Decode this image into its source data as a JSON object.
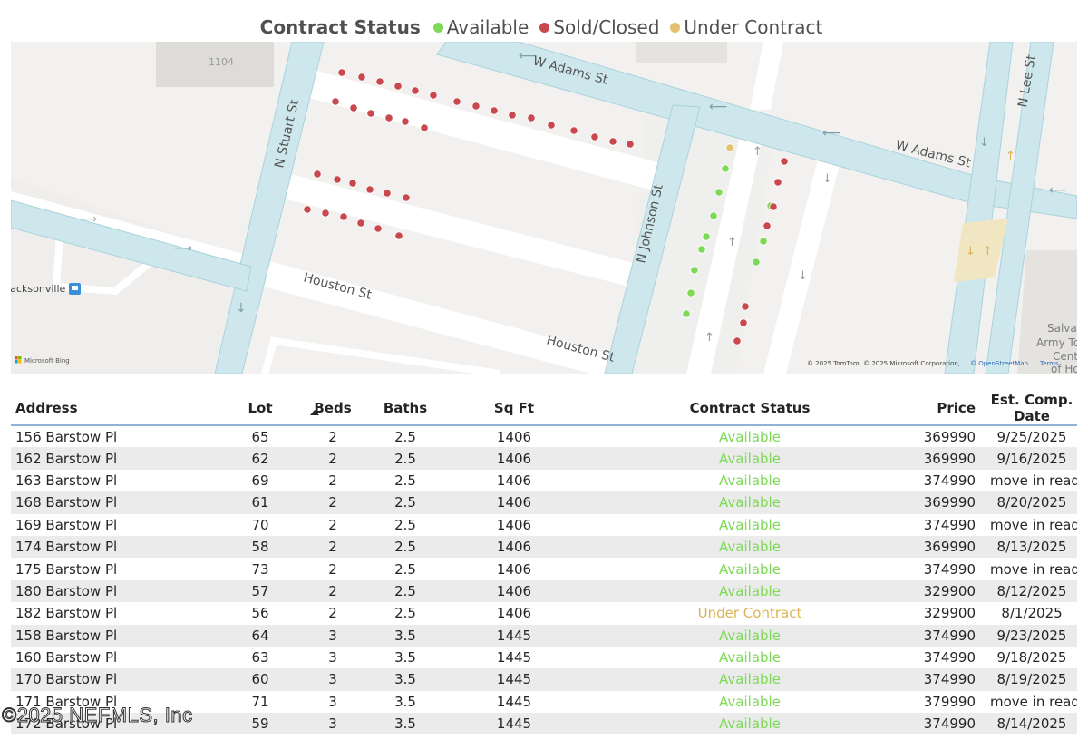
{
  "legend": {
    "title": "Contract Status",
    "items": [
      {
        "label": "Available",
        "color": "#7ed957"
      },
      {
        "label": "Sold/Closed",
        "color": "#c8484d"
      },
      {
        "label": "Under Contract",
        "color": "#e3c16f"
      }
    ]
  },
  "map": {
    "streets": {
      "w_adams_1": "W Adams St",
      "w_adams_2": "W Adams St",
      "n_stuart": "N Stuart St",
      "n_johnson": "N Johnson St",
      "houston_1": "Houston St",
      "houston_2": "Houston St",
      "n_lee": "N Lee St"
    },
    "labels": {
      "building": "1104",
      "place": "Jacksonville",
      "poi_line1": "Salvat",
      "poi_line2": "Army To",
      "poi_line3": "Cent",
      "poi_line4": "of Ho"
    },
    "logo": "Microsoft Bing",
    "attribution_prefix": "© 2025 TomTom, © 2025 Microsoft Corporation,",
    "attribution_link": "© OpenStreetMap",
    "terms_link": "Terms",
    "dot_status_colors": {
      "available": "#7ed957",
      "sold": "#c8484d",
      "under_contract": "#e3c16f"
    }
  },
  "table": {
    "columns": {
      "address": "Address",
      "lot": "Lot",
      "beds": "Beds",
      "baths": "Baths",
      "sqft": "Sq Ft",
      "status": "Contract Status",
      "price": "Price",
      "date": "Est. Comp. Date"
    },
    "sorted_column": "beds",
    "sort_direction": "ascending",
    "rows": [
      {
        "address": "156 Barstow Pl",
        "lot": "65",
        "beds": "2",
        "baths": "2.5",
        "sqft": "1406",
        "status": "Available",
        "price": "369990",
        "date": "9/25/2025"
      },
      {
        "address": "162 Barstow Pl",
        "lot": "62",
        "beds": "2",
        "baths": "2.5",
        "sqft": "1406",
        "status": "Available",
        "price": "369990",
        "date": "9/16/2025"
      },
      {
        "address": "163 Barstow Pl",
        "lot": "69",
        "beds": "2",
        "baths": "2.5",
        "sqft": "1406",
        "status": "Available",
        "price": "374990",
        "date": "move in ready"
      },
      {
        "address": "168 Barstow Pl",
        "lot": "61",
        "beds": "2",
        "baths": "2.5",
        "sqft": "1406",
        "status": "Available",
        "price": "369990",
        "date": "8/20/2025"
      },
      {
        "address": "169 Barstow Pl",
        "lot": "70",
        "beds": "2",
        "baths": "2.5",
        "sqft": "1406",
        "status": "Available",
        "price": "374990",
        "date": "move in ready"
      },
      {
        "address": "174 Barstow Pl",
        "lot": "58",
        "beds": "2",
        "baths": "2.5",
        "sqft": "1406",
        "status": "Available",
        "price": "369990",
        "date": "8/13/2025"
      },
      {
        "address": "175 Barstow Pl",
        "lot": "73",
        "beds": "2",
        "baths": "2.5",
        "sqft": "1406",
        "status": "Available",
        "price": "374990",
        "date": "move in ready"
      },
      {
        "address": "180 Barstow Pl",
        "lot": "57",
        "beds": "2",
        "baths": "2.5",
        "sqft": "1406",
        "status": "Available",
        "price": "329900",
        "date": "8/12/2025"
      },
      {
        "address": "182 Barstow Pl",
        "lot": "56",
        "beds": "2",
        "baths": "2.5",
        "sqft": "1406",
        "status": "Under Contract",
        "price": "329900",
        "date": "8/1/2025"
      },
      {
        "address": "158 Barstow Pl",
        "lot": "64",
        "beds": "3",
        "baths": "3.5",
        "sqft": "1445",
        "status": "Available",
        "price": "374990",
        "date": "9/23/2025"
      },
      {
        "address": "160 Barstow Pl",
        "lot": "63",
        "beds": "3",
        "baths": "3.5",
        "sqft": "1445",
        "status": "Available",
        "price": "374990",
        "date": "9/18/2025"
      },
      {
        "address": "170 Barstow Pl",
        "lot": "60",
        "beds": "3",
        "baths": "3.5",
        "sqft": "1445",
        "status": "Available",
        "price": "374990",
        "date": "8/19/2025"
      },
      {
        "address": "171 Barstow Pl",
        "lot": "71",
        "beds": "3",
        "baths": "3.5",
        "sqft": "1445",
        "status": "Available",
        "price": "379990",
        "date": "move in ready"
      },
      {
        "address": "172 Barstow Pl",
        "lot": "59",
        "beds": "3",
        "baths": "3.5",
        "sqft": "1445",
        "status": "Available",
        "price": "374990",
        "date": "8/14/2025"
      }
    ],
    "status_colors": {
      "Available": "#7ed957",
      "Under Contract": "#d9b455",
      "Sold/Closed": "#c8484d"
    }
  },
  "watermark": "©2025 NEFMLS, Inc"
}
